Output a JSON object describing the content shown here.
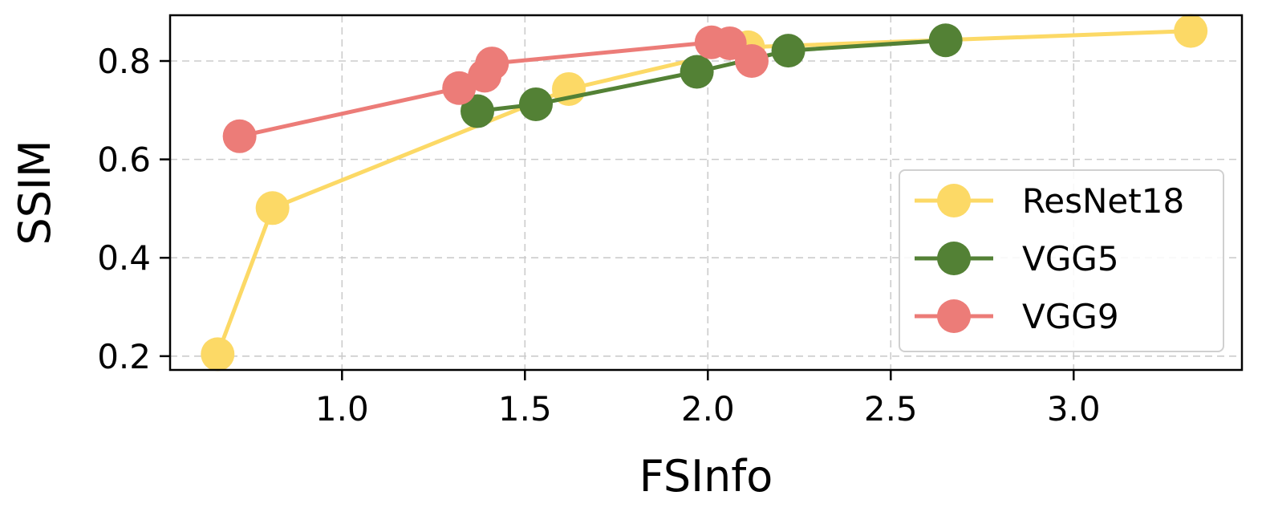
{
  "chart_data": {
    "type": "line",
    "title": "",
    "xlabel": "FSInfo",
    "ylabel": "SSIM",
    "xlim": [
      0.53,
      3.46
    ],
    "ylim": [
      0.172,
      0.893
    ],
    "xticks": [
      1.0,
      1.5,
      2.0,
      2.5,
      3.0
    ],
    "xtick_labels": [
      "1.0",
      "1.5",
      "2.0",
      "2.5",
      "3.0"
    ],
    "yticks": [
      0.2,
      0.4,
      0.6,
      0.8
    ],
    "ytick_labels": [
      "0.2",
      "0.4",
      "0.6",
      "0.8"
    ],
    "grid": true,
    "legend": {
      "position": "lower-right"
    },
    "series": [
      {
        "name": "ResNet18",
        "color": "#FCD966",
        "points": [
          {
            "x": 0.66,
            "y": 0.204
          },
          {
            "x": 0.81,
            "y": 0.501
          },
          {
            "x": 1.62,
            "y": 0.743
          },
          {
            "x": 2.11,
            "y": 0.828
          },
          {
            "x": 3.32,
            "y": 0.861
          }
        ]
      },
      {
        "name": "VGG5",
        "color": "#538135",
        "points": [
          {
            "x": 1.37,
            "y": 0.698
          },
          {
            "x": 1.53,
            "y": 0.712
          },
          {
            "x": 1.97,
            "y": 0.778
          },
          {
            "x": 2.22,
            "y": 0.821
          },
          {
            "x": 2.65,
            "y": 0.842
          }
        ]
      },
      {
        "name": "VGG9",
        "color": "#EC7C78",
        "points": [
          {
            "x": 0.72,
            "y": 0.647
          },
          {
            "x": 1.32,
            "y": 0.745
          },
          {
            "x": 1.39,
            "y": 0.77
          },
          {
            "x": 1.41,
            "y": 0.795
          },
          {
            "x": 2.01,
            "y": 0.838
          },
          {
            "x": 2.06,
            "y": 0.836
          },
          {
            "x": 2.12,
            "y": 0.8
          }
        ]
      }
    ]
  }
}
